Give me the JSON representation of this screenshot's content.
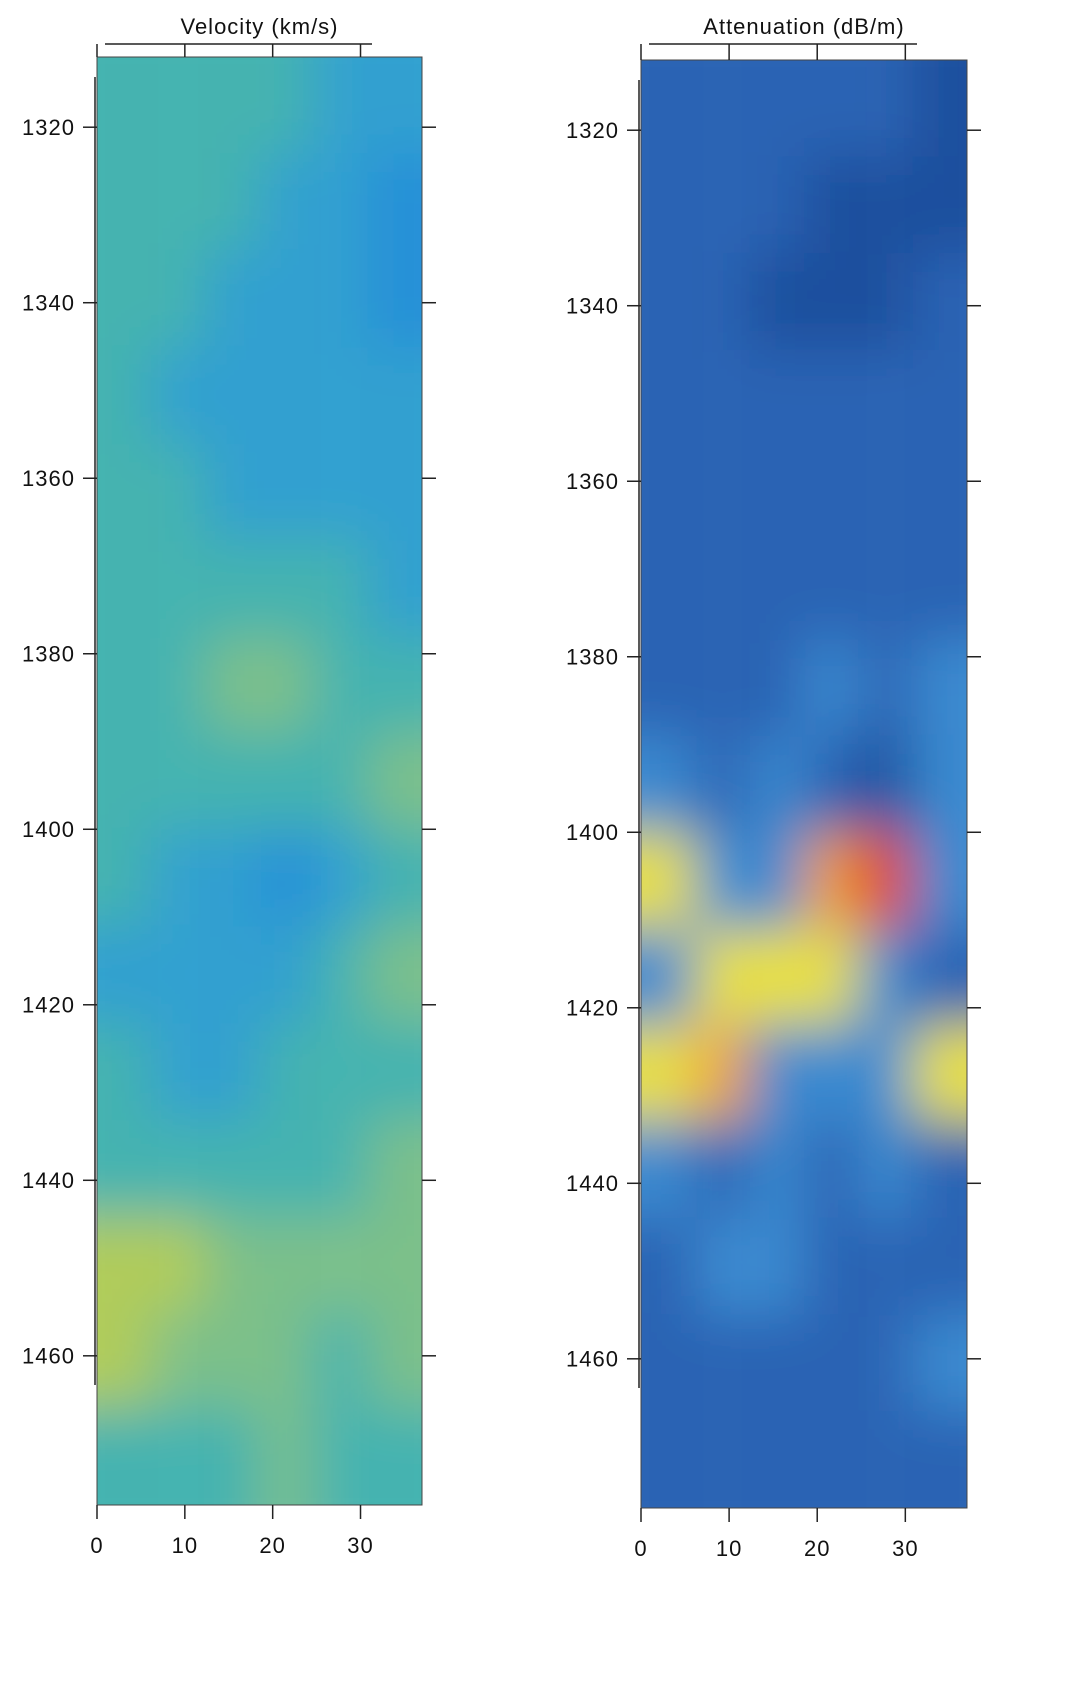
{
  "chart_data": [
    {
      "type": "heatmap",
      "title": "Velocity (km/s)",
      "xlim": [
        0,
        37
      ],
      "ylim": [
        1312,
        1477
      ],
      "xticks": [
        0,
        10,
        20,
        30
      ],
      "yticks": [
        1320,
        1340,
        1360,
        1380,
        1400,
        1420,
        1440,
        1460
      ],
      "colors": [
        [
          "#45b3b0",
          "#45b3b0",
          "#45b3b0",
          "#45b3b0",
          "#30a0d0",
          "#30a0d0"
        ],
        [
          "#45b3b0",
          "#45b3b0",
          "#45b3b0",
          "#30a0d0",
          "#30a0d0",
          "#2590d8"
        ],
        [
          "#45b3b0",
          "#45b3b0",
          "#30a0d0",
          "#30a0d0",
          "#30a0d0",
          "#2590d8"
        ],
        [
          "#45b3b0",
          "#30a0d0",
          "#30a0d0",
          "#30a0d0",
          "#30a0d0",
          "#30a0d0"
        ],
        [
          "#45b3b0",
          "#45b3b0",
          "#30a0d0",
          "#30a0d0",
          "#30a0d0",
          "#30a0d0"
        ],
        [
          "#45b3b0",
          "#45b3b0",
          "#45b3b0",
          "#45b3b0",
          "#45b3b0",
          "#30a0d0"
        ],
        [
          "#45b3b0",
          "#45b3b0",
          "#7cc08a",
          "#7cc08a",
          "#45b3b0",
          "#45b3b0"
        ],
        [
          "#45b3b0",
          "#45b3b0",
          "#45b3b0",
          "#45b3b0",
          "#45b3b0",
          "#7cc08a"
        ],
        [
          "#45b3b0",
          "#30a0d0",
          "#30a0d0",
          "#2590d8",
          "#30a0d0",
          "#45b3b0"
        ],
        [
          "#30a0d0",
          "#30a0d0",
          "#30a0d0",
          "#30a0d0",
          "#45b3b0",
          "#7cc08a"
        ],
        [
          "#45b3b0",
          "#30a0d0",
          "#30a0d0",
          "#45b3b0",
          "#45b3b0",
          "#45b3b0"
        ],
        [
          "#45b3b0",
          "#45b3b0",
          "#45b3b0",
          "#45b3b0",
          "#45b3b0",
          "#7cc08a"
        ],
        [
          "#b0cc5a",
          "#b0cc5a",
          "#7cc08a",
          "#7cc08a",
          "#7cc08a",
          "#7cc08a"
        ],
        [
          "#b0cc5a",
          "#7cc08a",
          "#7cc08a",
          "#7cc08a",
          "#45b3b0",
          "#7cc08a"
        ],
        [
          "#45b3b0",
          "#45b3b0",
          "#45b3b0",
          "#7cc08a",
          "#45b3b0",
          "#45b3b0"
        ]
      ]
    },
    {
      "type": "heatmap",
      "title": "Attenuation (dB/m)",
      "xlim": [
        0,
        37
      ],
      "ylim": [
        1312,
        1477
      ],
      "xticks": [
        0,
        10,
        20,
        30
      ],
      "yticks": [
        1320,
        1340,
        1360,
        1380,
        1400,
        1420,
        1440,
        1460
      ],
      "colors": [
        [
          "#2a64b4",
          "#2a64b4",
          "#2a64b4",
          "#2a64b4",
          "#2a64b4",
          "#1f4f9e"
        ],
        [
          "#2a64b4",
          "#2a64b4",
          "#2a64b4",
          "#1f4f9e",
          "#1f4f9e",
          "#1f4f9e"
        ],
        [
          "#2a64b4",
          "#2a64b4",
          "#1f4f9e",
          "#1f4f9e",
          "#1f4f9e",
          "#2a64b4"
        ],
        [
          "#2a64b4",
          "#2a64b4",
          "#2a64b4",
          "#2a64b4",
          "#2a64b4",
          "#2a64b4"
        ],
        [
          "#2a64b4",
          "#2a64b4",
          "#2a64b4",
          "#2a64b4",
          "#2a64b4",
          "#2a64b4"
        ],
        [
          "#2a64b4",
          "#2a64b4",
          "#2a64b4",
          "#2a64b4",
          "#2a64b4",
          "#2a64b4"
        ],
        [
          "#2a64b4",
          "#2a64b4",
          "#2a64b4",
          "#3a8ad0",
          "#2a64b4",
          "#3a8ad0"
        ],
        [
          "#3a8ad0",
          "#2a64b4",
          "#3a8ad0",
          "#2a64b4",
          "#1f4f9e",
          "#3a8ad0"
        ],
        [
          "#e8e040",
          "#3a8ad0",
          "#3a8ad0",
          "#f0a030",
          "#e03020",
          "#3a8ad0"
        ],
        [
          "#3a8ad0",
          "#e8e040",
          "#e8e040",
          "#e8e040",
          "#3a8ad0",
          "#2a64b4"
        ],
        [
          "#e8e040",
          "#f0a030",
          "#3a8ad0",
          "#3a8ad0",
          "#3a8ad0",
          "#e8e040"
        ],
        [
          "#3a8ad0",
          "#2a64b4",
          "#3a8ad0",
          "#2a64b4",
          "#3a8ad0",
          "#2a64b4"
        ],
        [
          "#2a64b4",
          "#3a8ad0",
          "#3a8ad0",
          "#2a64b4",
          "#2a64b4",
          "#2a64b4"
        ],
        [
          "#2a64b4",
          "#2a64b4",
          "#2a64b4",
          "#2a64b4",
          "#2a64b4",
          "#3a8ad0"
        ],
        [
          "#2a64b4",
          "#2a64b4",
          "#2a64b4",
          "#2a64b4",
          "#2a64b4",
          "#2a64b4"
        ]
      ]
    }
  ]
}
